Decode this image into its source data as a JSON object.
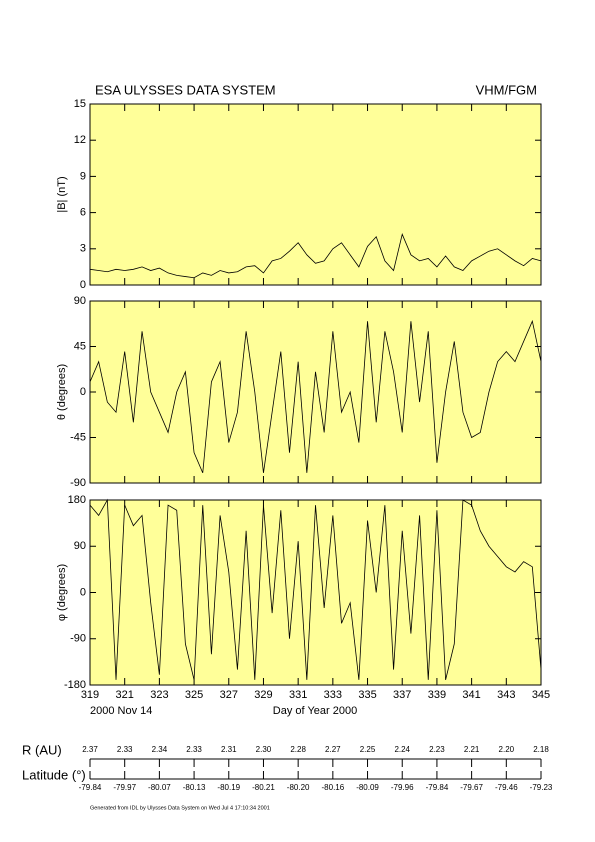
{
  "header": {
    "title": "ESA ULYSSES DATA SYSTEM",
    "instrument": "VHM/FGM"
  },
  "chart_data": [
    {
      "type": "line",
      "ylabel": "|B| (nT)",
      "color": "#000000",
      "background": "#ffff99",
      "x": [
        319,
        319.5,
        320,
        320.5,
        321,
        321.5,
        322,
        322.5,
        323,
        323.5,
        324,
        324.5,
        325,
        325.5,
        326,
        326.5,
        327,
        327.5,
        328,
        328.5,
        329,
        329.5,
        330,
        330.5,
        331,
        331.5,
        332,
        332.5,
        333,
        333.5,
        334,
        334.5,
        335,
        335.5,
        336,
        336.5,
        337,
        337.5,
        338,
        338.5,
        339,
        339.5,
        340,
        340.5,
        341,
        341.5,
        342,
        342.5,
        343,
        343.5,
        344,
        344.5,
        345
      ],
      "values": [
        1.3,
        1.2,
        1.1,
        1.3,
        1.2,
        1.3,
        1.5,
        1.2,
        1.4,
        1.0,
        0.8,
        0.7,
        0.6,
        1.0,
        0.8,
        1.2,
        1.0,
        1.1,
        1.5,
        1.6,
        1.0,
        2.0,
        2.2,
        2.8,
        3.5,
        2.5,
        1.8,
        2.0,
        3.0,
        3.5,
        2.5,
        1.5,
        3.2,
        4.0,
        2.0,
        1.2,
        4.2,
        2.5,
        2.0,
        2.2,
        1.5,
        2.4,
        1.5,
        1.2,
        2.0,
        2.4,
        2.8,
        3.0,
        2.5,
        2.0,
        1.6,
        2.2,
        2.0
      ],
      "xlim": [
        319,
        345
      ],
      "ylim": [
        0,
        15
      ],
      "yticks": [
        0,
        3,
        6,
        9,
        12,
        15
      ]
    },
    {
      "type": "line",
      "ylabel": "θ (degrees)",
      "color": "#000000",
      "background": "#ffff99",
      "x": [
        319,
        319.5,
        320,
        320.5,
        321,
        321.5,
        322,
        322.5,
        323,
        323.5,
        324,
        324.5,
        325,
        325.5,
        326,
        326.5,
        327,
        327.5,
        328,
        328.5,
        329,
        329.5,
        330,
        330.5,
        331,
        331.5,
        332,
        332.5,
        333,
        333.5,
        334,
        334.5,
        335,
        335.5,
        336,
        336.5,
        337,
        337.5,
        338,
        338.5,
        339,
        339.5,
        340,
        340.5,
        341,
        341.5,
        342,
        342.5,
        343,
        343.5,
        344,
        344.5,
        345
      ],
      "values": [
        10,
        30,
        -10,
        -20,
        40,
        -30,
        60,
        0,
        -20,
        -40,
        0,
        20,
        -60,
        -80,
        10,
        30,
        -50,
        -20,
        60,
        0,
        -80,
        -20,
        40,
        -60,
        30,
        -80,
        20,
        -40,
        60,
        -20,
        0,
        -50,
        70,
        -30,
        60,
        20,
        -40,
        70,
        -10,
        60,
        -70,
        0,
        50,
        -20,
        -45,
        -40,
        0,
        30,
        40,
        30,
        50,
        70,
        30
      ],
      "xlim": [
        319,
        345
      ],
      "ylim": [
        -90,
        90
      ],
      "yticks": [
        -90,
        -45,
        0,
        45,
        90
      ]
    },
    {
      "type": "line",
      "ylabel": "φ (degrees)",
      "color": "#000000",
      "background": "#ffff99",
      "x": [
        319,
        319.5,
        320,
        320.5,
        321,
        321.5,
        322,
        322.5,
        323,
        323.5,
        324,
        324.5,
        325,
        325.5,
        326,
        326.5,
        327,
        327.5,
        328,
        328.5,
        329,
        329.5,
        330,
        330.5,
        331,
        331.5,
        332,
        332.5,
        333,
        333.5,
        334,
        334.5,
        335,
        335.5,
        336,
        336.5,
        337,
        337.5,
        338,
        338.5,
        339,
        339.5,
        340,
        340.5,
        341,
        341.5,
        342,
        342.5,
        343,
        343.5,
        344,
        344.5,
        345
      ],
      "values": [
        170,
        150,
        180,
        -170,
        170,
        130,
        150,
        -20,
        -160,
        170,
        160,
        -100,
        -170,
        170,
        -120,
        150,
        40,
        -150,
        120,
        -170,
        170,
        -40,
        160,
        -90,
        100,
        -170,
        170,
        -30,
        150,
        -60,
        -20,
        -170,
        140,
        0,
        170,
        -150,
        120,
        -80,
        150,
        -170,
        160,
        -170,
        -100,
        180,
        170,
        120,
        90,
        70,
        50,
        40,
        60,
        50,
        -150
      ],
      "xlim": [
        319,
        345
      ],
      "ylim": [
        -180,
        180
      ],
      "yticks": [
        -180,
        -90,
        0,
        90,
        180
      ],
      "xticks": [
        319,
        321,
        323,
        325,
        327,
        329,
        331,
        333,
        335,
        337,
        339,
        341,
        343,
        345
      ],
      "xlabel": "Day of Year 2000",
      "date_label": "2000 Nov 14"
    }
  ],
  "orbit": {
    "r_label": "R (AU)",
    "r_values": [
      "2.37",
      "2.33",
      "2.34",
      "2.33",
      "2.31",
      "2.30",
      "2.28",
      "2.27",
      "2.25",
      "2.24",
      "2.23",
      "2.21",
      "2.20",
      "2.18"
    ],
    "lat_label": "Latitude (°)",
    "lat_values": [
      "-79.84",
      "-79.97",
      "-80.07",
      "-80.13",
      "-80.19",
      "-80.21",
      "-80.20",
      "-80.16",
      "-80.09",
      "-79.96",
      "-79.84",
      "-79.67",
      "-79.46",
      "-79.23"
    ]
  },
  "footer": "Generated from IDL by Ulysses Data System on Wed Jul 4 17:10:34 2001"
}
